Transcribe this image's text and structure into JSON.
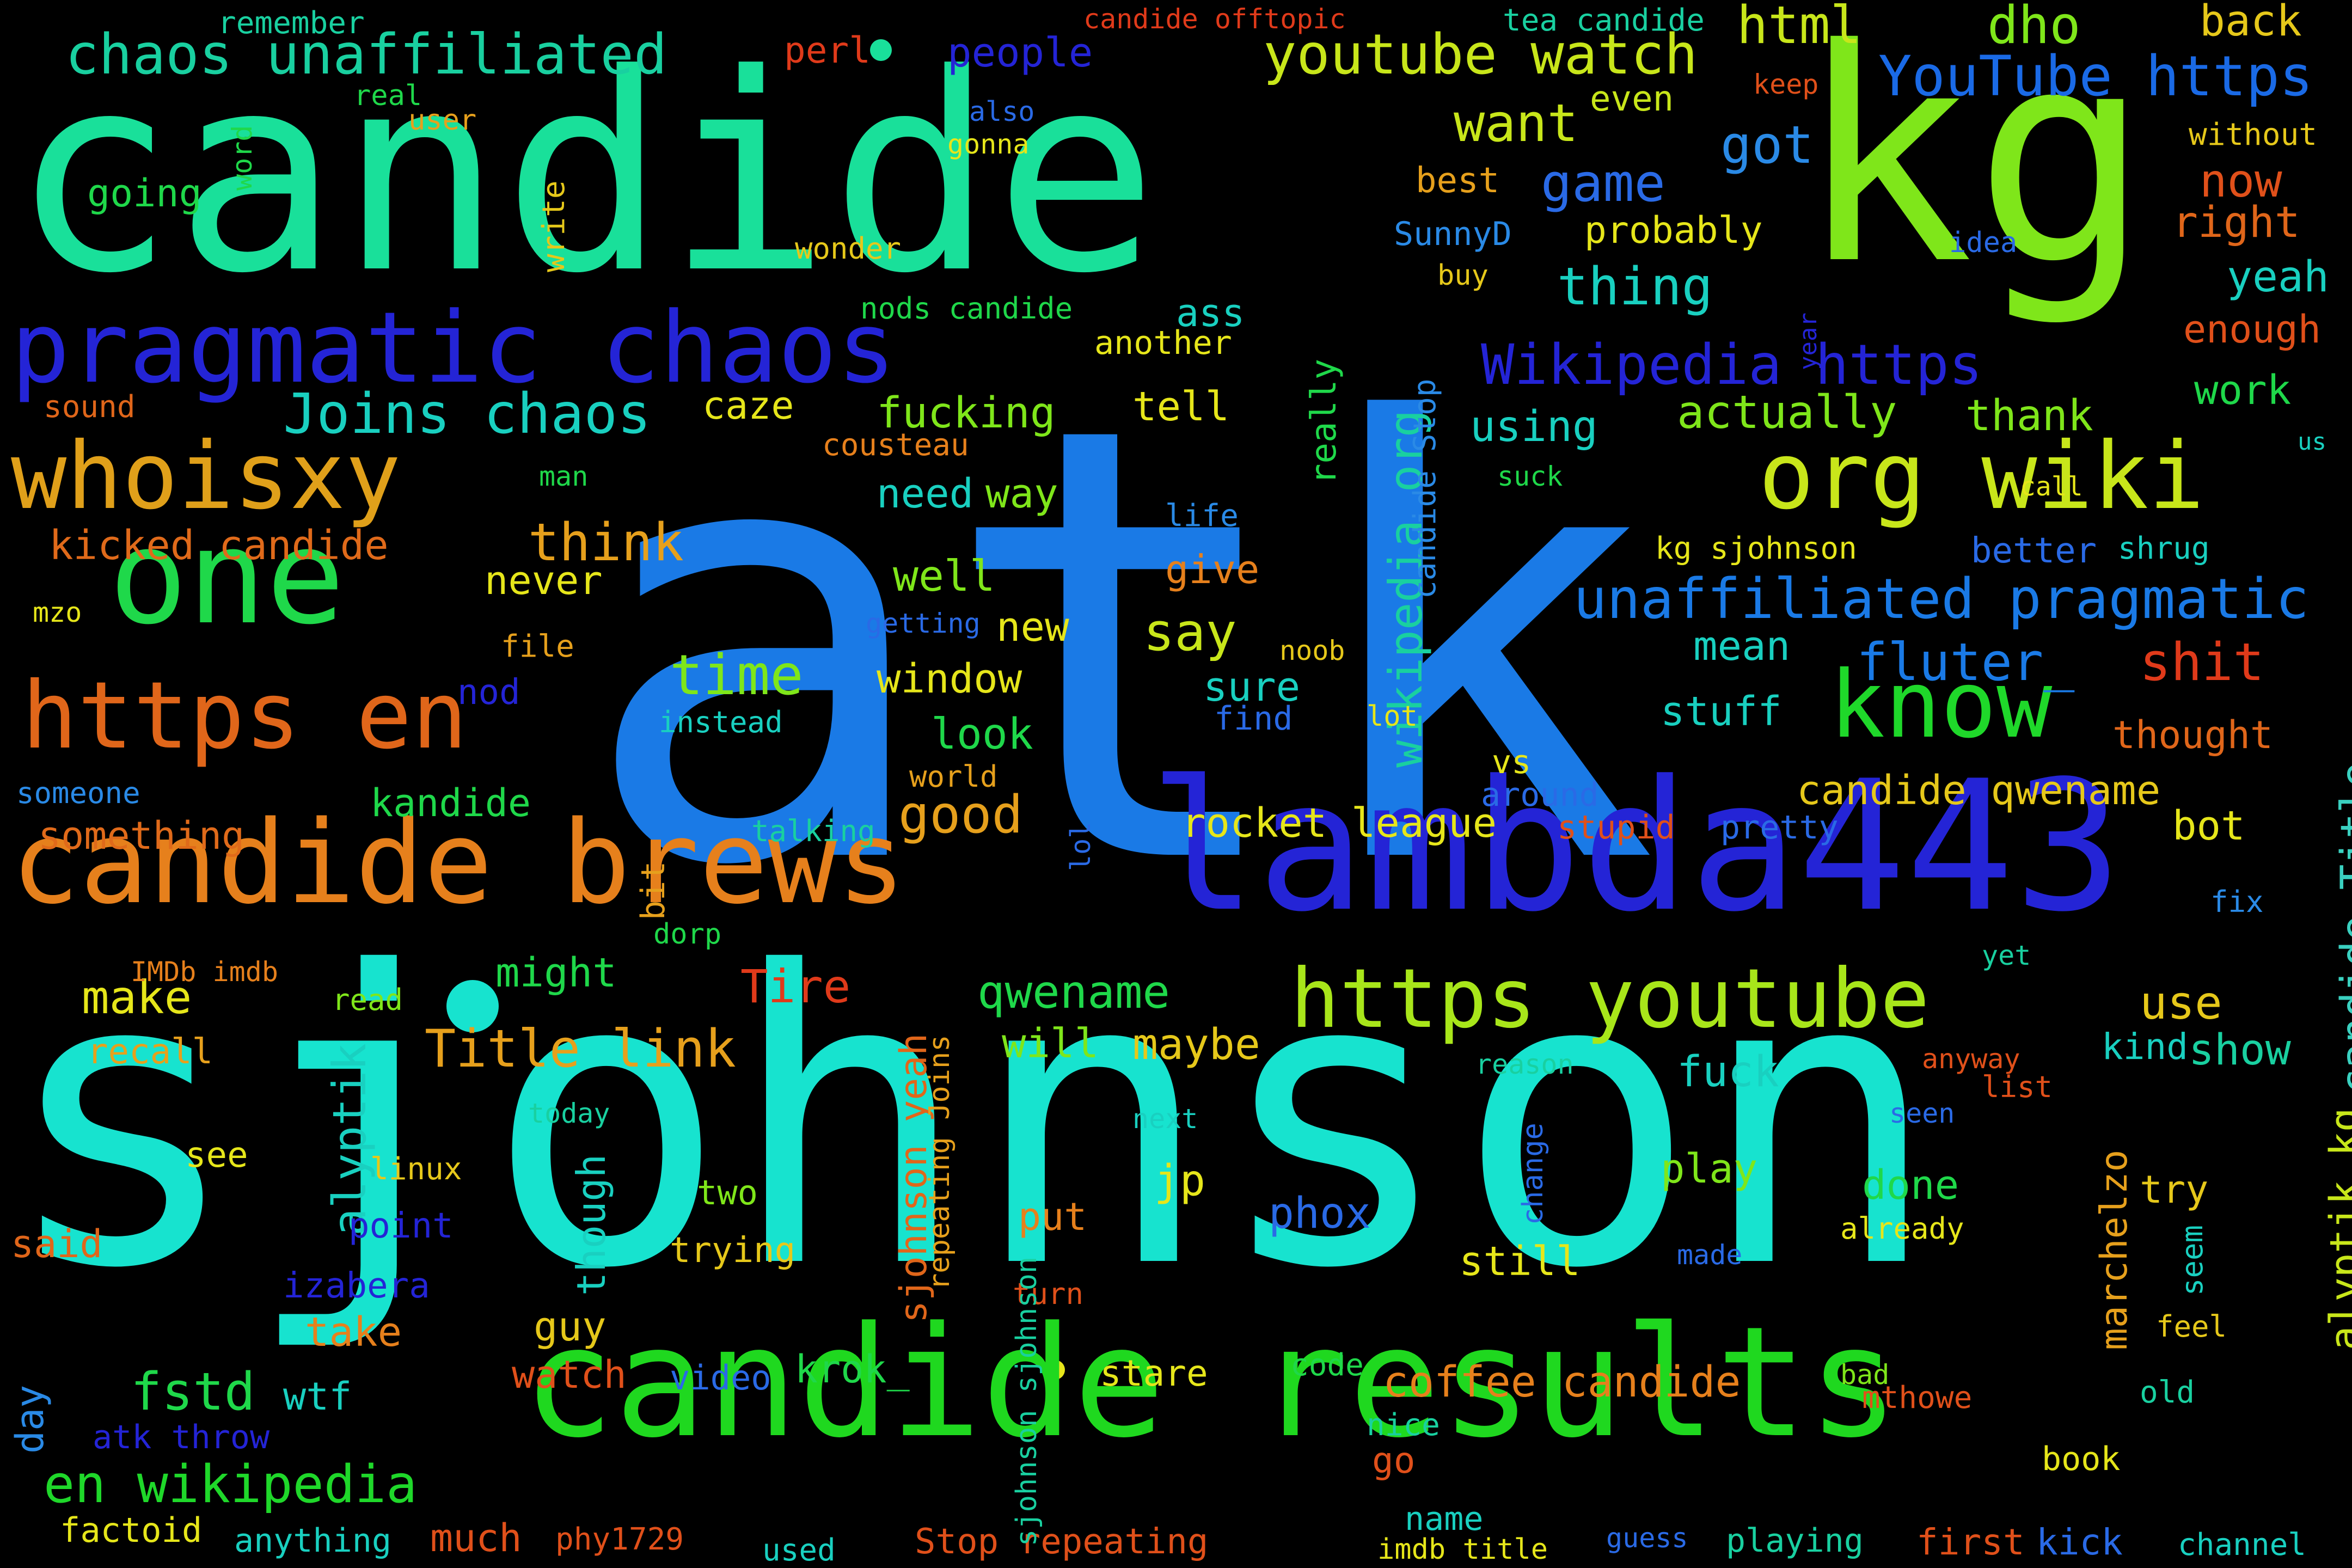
{
  "words": [
    {
      "text": "atk",
      "color": "#1a7ae6"
    },
    {
      "text": "sjohnson",
      "color": "#17e3cf"
    },
    {
      "text": "candide",
      "color": "#19e09a"
    },
    {
      "text": "kg",
      "color": "#7fe61a"
    },
    {
      "text": "lambda443",
      "color": "#2424d6"
    },
    {
      "text": "candide results",
      "color": "#1fd81f"
    },
    {
      "text": "candide brews",
      "color": "#e6801c"
    },
    {
      "text": "pragmatic chaos",
      "color": "#2424d6"
    },
    {
      "text": "one",
      "color": "#1fd84a"
    },
    {
      "text": "org wiki",
      "color": "#c8e61a"
    },
    {
      "text": "whoisxy",
      "color": "#e0a01a"
    },
    {
      "text": "https en",
      "color": "#e0661a"
    },
    {
      "text": "https youtube",
      "color": "#a8e61a"
    },
    {
      "text": "know",
      "color": "#1fd82a"
    },
    {
      "text": "chaos unaffiliated",
      "color": "#19d0a0"
    },
    {
      "text": "youtube watch",
      "color": "#c8e61a"
    },
    {
      "text": "YouTube https",
      "color": "#1a6ae6"
    },
    {
      "text": "unaffiliated pragmatic",
      "color": "#1a7ae6"
    },
    {
      "text": "Wikipedia https",
      "color": "#2424d6"
    },
    {
      "text": "Joins chaos",
      "color": "#19d0c0"
    },
    {
      "text": "wikipedia org",
      "color": "#19d0a0"
    },
    {
      "text": "candide Title",
      "color": "#3ad0c0"
    },
    {
      "text": "alyptik kg",
      "color": "#c8e61a"
    },
    {
      "text": "en wikipedia",
      "color": "#1fd82a"
    },
    {
      "text": "coffee candide",
      "color": "#e6801c"
    },
    {
      "text": "Title link",
      "color": "#e6a01c"
    },
    {
      "text": "rocket league",
      "color": "#e6e61a"
    },
    {
      "text": "candide qwename",
      "color": "#e6c81a"
    },
    {
      "text": "kicked candide",
      "color": "#e06a1a"
    },
    {
      "text": "fluter_",
      "color": "#1a7ae6"
    },
    {
      "text": "sjohnson yeah",
      "color": "#e0661a"
    },
    {
      "text": "marchelzo",
      "color": "#e6a01c"
    },
    {
      "text": "qwename",
      "color": "#1fd84a"
    },
    {
      "text": "alyptik",
      "color": "#19d0c0"
    },
    {
      "text": "time",
      "color": "#7fe61a"
    },
    {
      "text": "think",
      "color": "#e6a01c"
    },
    {
      "text": "fstd",
      "color": "#1fd84a"
    },
    {
      "text": "good",
      "color": "#e6a01c"
    },
    {
      "text": "make",
      "color": "#e6e61a"
    },
    {
      "text": "thing",
      "color": "#19d0c0"
    },
    {
      "text": "want",
      "color": "#c8e61a"
    },
    {
      "text": "got",
      "color": "#2a8ae6"
    },
    {
      "text": "game",
      "color": "#2a6ae6"
    },
    {
      "text": "shit",
      "color": "#e03a1a"
    },
    {
      "text": "html",
      "color": "#c8e61a"
    },
    {
      "text": "dho",
      "color": "#7fe61a"
    },
    {
      "text": "back",
      "color": "#e6c81a"
    },
    {
      "text": "now",
      "color": "#e0501a"
    },
    {
      "text": "right",
      "color": "#e0661a"
    },
    {
      "text": "yeah",
      "color": "#19d0c0"
    },
    {
      "text": "enough",
      "color": "#e0501a"
    },
    {
      "text": "work",
      "color": "#1fd84a"
    },
    {
      "text": "thank",
      "color": "#7fe61a"
    },
    {
      "text": "actually",
      "color": "#7fe61a"
    },
    {
      "text": "using",
      "color": "#19d0c0"
    },
    {
      "text": "say",
      "color": "#c8e61a"
    },
    {
      "text": "well",
      "color": "#7fe61a"
    },
    {
      "text": "need",
      "color": "#19d0c0"
    },
    {
      "text": "way",
      "color": "#7fe61a"
    },
    {
      "text": "window",
      "color": "#e6e61a"
    },
    {
      "text": "look",
      "color": "#1fd84a"
    },
    {
      "text": "new",
      "color": "#e6e61a"
    },
    {
      "text": "sure",
      "color": "#19d0c0"
    },
    {
      "text": "mean",
      "color": "#19d0c0"
    },
    {
      "text": "stuff",
      "color": "#19d0c0"
    },
    {
      "text": "thought",
      "color": "#e0661a"
    },
    {
      "text": "vs",
      "color": "#e6e61a"
    },
    {
      "text": "around",
      "color": "#2a6ae6"
    },
    {
      "text": "stupid",
      "color": "#e0501a"
    },
    {
      "text": "pretty",
      "color": "#2a6ae6"
    },
    {
      "text": "bot",
      "color": "#e6e61a"
    },
    {
      "text": "use",
      "color": "#e6c81a"
    },
    {
      "text": "show",
      "color": "#19d0a0"
    },
    {
      "text": "kind",
      "color": "#19d0c0"
    },
    {
      "text": "fuck",
      "color": "#19d0c0"
    },
    {
      "text": "maybe",
      "color": "#e6c81a"
    },
    {
      "text": "will",
      "color": "#7fe61a"
    },
    {
      "text": "play",
      "color": "#7fe61a"
    },
    {
      "text": "done",
      "color": "#1fd84a"
    },
    {
      "text": "try",
      "color": "#e6c81a"
    },
    {
      "text": "still",
      "color": "#e6e61a"
    },
    {
      "text": "jp",
      "color": "#e6e61a"
    },
    {
      "text": "put",
      "color": "#e6801c"
    },
    {
      "text": "phox",
      "color": "#2a6ae6"
    },
    {
      "text": "two",
      "color": "#7fe61a"
    },
    {
      "text": "trying",
      "color": "#e6c81a"
    },
    {
      "text": "turn",
      "color": "#e0501a"
    },
    {
      "text": "stare",
      "color": "#e6e61a"
    },
    {
      "text": "krok_",
      "color": "#1fd84a"
    },
    {
      "text": "code",
      "color": "#1fd84a"
    },
    {
      "text": "nice",
      "color": "#19d0a0"
    },
    {
      "text": "go",
      "color": "#e0501a"
    },
    {
      "text": "bad",
      "color": "#7fe61a"
    },
    {
      "text": "mthowe",
      "color": "#e0501a"
    },
    {
      "text": "old",
      "color": "#19d0a0"
    },
    {
      "text": "book",
      "color": "#e6e61a"
    },
    {
      "text": "name",
      "color": "#19d0c0"
    },
    {
      "text": "imdb title",
      "color": "#e6e61a"
    },
    {
      "text": "guess",
      "color": "#2a6ae6"
    },
    {
      "text": "playing",
      "color": "#19d0a0"
    },
    {
      "text": "first",
      "color": "#e0501a"
    },
    {
      "text": "kick",
      "color": "#2a6ae6"
    },
    {
      "text": "channel",
      "color": "#19d0c0"
    },
    {
      "text": "Stop repeating",
      "color": "#e0501a"
    },
    {
      "text": "used",
      "color": "#19d0c0"
    },
    {
      "text": "phy1729",
      "color": "#e0501a"
    },
    {
      "text": "much",
      "color": "#e0501a"
    },
    {
      "text": "anything",
      "color": "#19d0c0"
    },
    {
      "text": "factoid",
      "color": "#e6e61a"
    },
    {
      "text": "day",
      "color": "#2a8ae6"
    },
    {
      "text": "atk throw",
      "color": "#2424d6"
    },
    {
      "text": "wtf",
      "color": "#19d0c0"
    },
    {
      "text": "video",
      "color": "#2a6ae6"
    },
    {
      "text": "watch",
      "color": "#e0501a"
    },
    {
      "text": "guy",
      "color": "#e6c81a"
    },
    {
      "text": "take",
      "color": "#e6801c"
    },
    {
      "text": "izabera",
      "color": "#2424d6"
    },
    {
      "text": "point",
      "color": "#2424d6"
    },
    {
      "text": "said",
      "color": "#e0661a"
    },
    {
      "text": "see",
      "color": "#e6e61a"
    },
    {
      "text": "linux",
      "color": "#e6c81a"
    },
    {
      "text": "though",
      "color": "#19d0c0"
    },
    {
      "text": "today",
      "color": "#19d0a0"
    },
    {
      "text": "recall",
      "color": "#e6a01c"
    },
    {
      "text": "IMDb imdb",
      "color": "#e6801c"
    },
    {
      "text": "read",
      "color": "#7fe61a"
    },
    {
      "text": "might",
      "color": "#1fd84a"
    },
    {
      "text": "Tire",
      "color": "#e03a1a"
    },
    {
      "text": "dorp",
      "color": "#1fd84a"
    },
    {
      "text": "bit",
      "color": "#e6a01c"
    },
    {
      "text": "something",
      "color": "#e06a1a"
    },
    {
      "text": "kandide",
      "color": "#1fd84a"
    },
    {
      "text": "someone",
      "color": "#2a8ae6"
    },
    {
      "text": "talking",
      "color": "#19d0a0"
    },
    {
      "text": "lol",
      "color": "#2a6ae6"
    },
    {
      "text": "world",
      "color": "#e6a01c"
    },
    {
      "text": "instead",
      "color": "#19d0c0"
    },
    {
      "text": "lot",
      "color": "#e6e61a"
    },
    {
      "text": "find",
      "color": "#2a6ae6"
    },
    {
      "text": "noob",
      "color": "#e6c81a"
    },
    {
      "text": "nod",
      "color": "#2424d6"
    },
    {
      "text": "file",
      "color": "#e6a01c"
    },
    {
      "text": "mzo",
      "color": "#e6e61a"
    },
    {
      "text": "getting",
      "color": "#2a6ae6"
    },
    {
      "text": "never",
      "color": "#e6e61a"
    },
    {
      "text": "give",
      "color": "#e6801c"
    },
    {
      "text": "life",
      "color": "#2a8ae6"
    },
    {
      "text": "really",
      "color": "#1fd84a"
    },
    {
      "text": "man",
      "color": "#1fd84a"
    },
    {
      "text": "cousteau",
      "color": "#e6801c"
    },
    {
      "text": "sound",
      "color": "#e0661a"
    },
    {
      "text": "caze",
      "color": "#e6e61a"
    },
    {
      "text": "fucking",
      "color": "#7fe61a"
    },
    {
      "text": "tell",
      "color": "#e6e61a"
    },
    {
      "text": "ass",
      "color": "#19d0c0"
    },
    {
      "text": "another",
      "color": "#e6e61a"
    },
    {
      "text": "nods candide",
      "color": "#1fd84a"
    },
    {
      "text": "wonder",
      "color": "#e6c81a"
    },
    {
      "text": "write",
      "color": "#e6c81a"
    },
    {
      "text": "word",
      "color": "#1fd84a"
    },
    {
      "text": "going",
      "color": "#1fd84a"
    },
    {
      "text": "real",
      "color": "#1fd84a"
    },
    {
      "text": "user",
      "color": "#e6a01c"
    },
    {
      "text": "remember",
      "color": "#19d0a0"
    },
    {
      "text": "perl",
      "color": "#e03a1a"
    },
    {
      "text": "people",
      "color": "#2424d6"
    },
    {
      "text": "candide offtopic",
      "color": "#e03a1a"
    },
    {
      "text": "tea candide",
      "color": "#19d0a0"
    },
    {
      "text": "also",
      "color": "#2a6ae6"
    },
    {
      "text": "gonna",
      "color": "#e6e61a"
    },
    {
      "text": "even",
      "color": "#c8e61a"
    },
    {
      "text": "keep",
      "color": "#e0501a"
    },
    {
      "text": "best",
      "color": "#e6a01c"
    },
    {
      "text": "SunnyD",
      "color": "#2a8ae6"
    },
    {
      "text": "probably",
      "color": "#e6e61a"
    },
    {
      "text": "buy",
      "color": "#e6c81a"
    },
    {
      "text": "idea",
      "color": "#2a6ae6"
    },
    {
      "text": "without",
      "color": "#e6c81a"
    },
    {
      "text": "year",
      "color": "#2424d6"
    },
    {
      "text": "candide Stop",
      "color": "#2a8ae6"
    },
    {
      "text": "suck",
      "color": "#1fd84a"
    },
    {
      "text": "call",
      "color": "#e6e61a"
    },
    {
      "text": "us",
      "color": "#19d0c0"
    },
    {
      "text": "kg sjohnson",
      "color": "#e6e61a"
    },
    {
      "text": "better",
      "color": "#2a6ae6"
    },
    {
      "text": "shrug",
      "color": "#19d0c0"
    },
    {
      "text": "fix",
      "color": "#2a8ae6"
    },
    {
      "text": "yet",
      "color": "#19d0a0"
    },
    {
      "text": "reason",
      "color": "#19d0a0"
    },
    {
      "text": "anyway",
      "color": "#e0501a"
    },
    {
      "text": "list",
      "color": "#e0501a"
    },
    {
      "text": "seen",
      "color": "#2a6ae6"
    },
    {
      "text": "next",
      "color": "#19d0c0"
    },
    {
      "text": "change",
      "color": "#2a6ae6"
    },
    {
      "text": "made",
      "color": "#2a6ae6"
    },
    {
      "text": "already",
      "color": "#e6e61a"
    },
    {
      "text": "seem",
      "color": "#19d0c0"
    },
    {
      "text": "feel",
      "color": "#e6c81a"
    },
    {
      "text": "repeating Joins",
      "color": "#e6a01c"
    },
    {
      "text": "sjohnson sjohnson",
      "color": "#19d0a0"
    }
  ]
}
